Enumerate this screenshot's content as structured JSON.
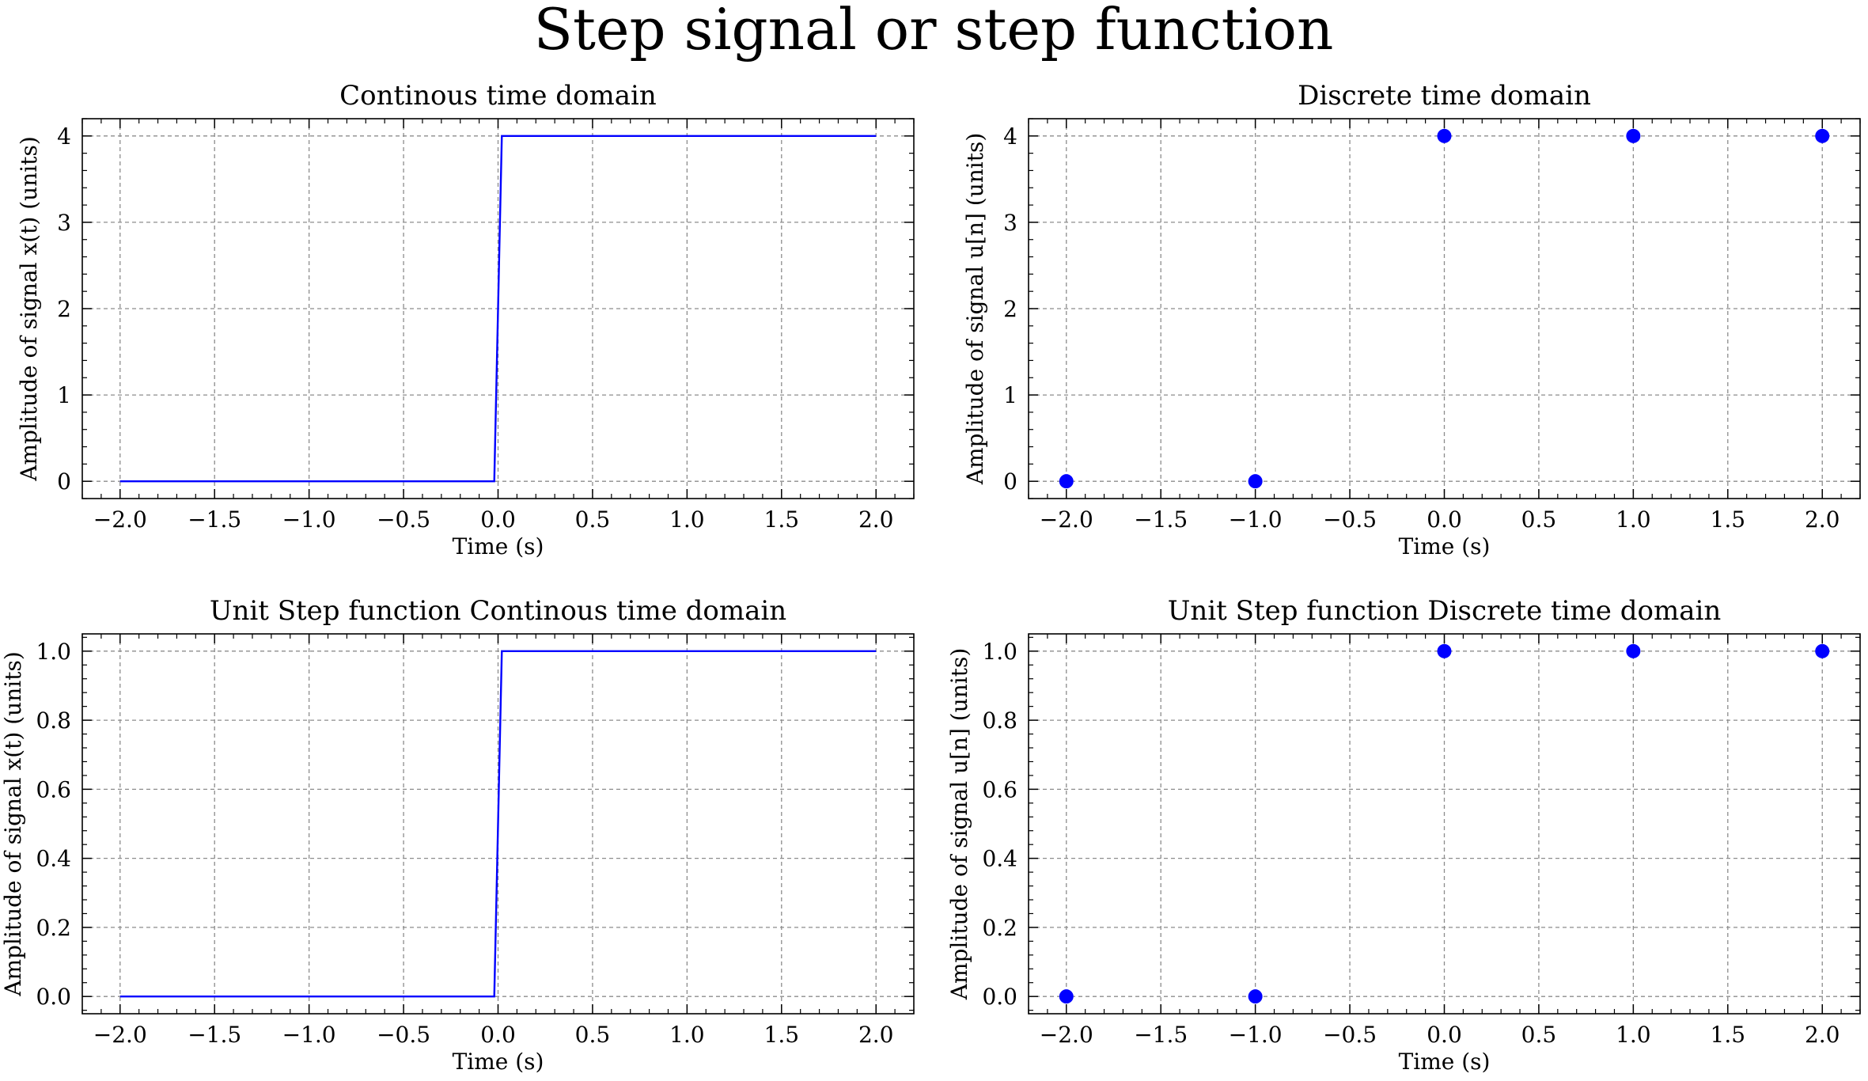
{
  "figure": {
    "title": "Step signal or step function"
  },
  "chart_data": [
    {
      "type": "line",
      "title": "Continous time domain",
      "xlabel": "Time (s)",
      "ylabel": "Amplitude of signal x(t) (units)",
      "xlim": [
        -2.2,
        2.2
      ],
      "ylim": [
        -0.2,
        4.2
      ],
      "xticks": [
        -2.0,
        -1.5,
        -1.0,
        -0.5,
        0.0,
        0.5,
        1.0,
        1.5,
        2.0
      ],
      "xtick_labels": [
        "−2.0",
        "−1.5",
        "−1.0",
        "−0.5",
        "0.0",
        "0.5",
        "1.0",
        "1.5",
        "2.0"
      ],
      "yticks": [
        0,
        1,
        2,
        3,
        4
      ],
      "ytick_labels": [
        "0",
        "1",
        "2",
        "3",
        "4"
      ],
      "grid": true,
      "series": [
        {
          "x": [
            -2.0,
            -0.02,
            0.02,
            2.0
          ],
          "y": [
            0,
            0,
            4,
            4
          ],
          "color": "#0000ff"
        }
      ]
    },
    {
      "type": "scatter",
      "title": "Discrete time domain",
      "xlabel": "Time (s)",
      "ylabel": "Amplitude of signal u[n] (units)",
      "xlim": [
        -2.2,
        2.2
      ],
      "ylim": [
        -0.2,
        4.2
      ],
      "xticks": [
        -2.0,
        -1.5,
        -1.0,
        -0.5,
        0.0,
        0.5,
        1.0,
        1.5,
        2.0
      ],
      "xtick_labels": [
        "−2.0",
        "−1.5",
        "−1.0",
        "−0.5",
        "0.0",
        "0.5",
        "1.0",
        "1.5",
        "2.0"
      ],
      "yticks": [
        0,
        1,
        2,
        3,
        4
      ],
      "ytick_labels": [
        "0",
        "1",
        "2",
        "3",
        "4"
      ],
      "grid": true,
      "series": [
        {
          "x": [
            -2,
            -1,
            0,
            1,
            2
          ],
          "y": [
            0,
            0,
            4,
            4,
            4
          ],
          "color": "#0000ff"
        }
      ]
    },
    {
      "type": "line",
      "title": "Unit Step function Continous time domain",
      "xlabel": "Time (s)",
      "ylabel": "Amplitude of signal x(t) (units)",
      "xlim": [
        -2.2,
        2.2
      ],
      "ylim": [
        -0.05,
        1.05
      ],
      "xticks": [
        -2.0,
        -1.5,
        -1.0,
        -0.5,
        0.0,
        0.5,
        1.0,
        1.5,
        2.0
      ],
      "xtick_labels": [
        "−2.0",
        "−1.5",
        "−1.0",
        "−0.5",
        "0.0",
        "0.5",
        "1.0",
        "1.5",
        "2.0"
      ],
      "yticks": [
        0.0,
        0.2,
        0.4,
        0.6,
        0.8,
        1.0
      ],
      "ytick_labels": [
        "0.0",
        "0.2",
        "0.4",
        "0.6",
        "0.8",
        "1.0"
      ],
      "grid": true,
      "series": [
        {
          "x": [
            -2.0,
            -0.02,
            0.02,
            2.0
          ],
          "y": [
            0,
            0,
            1,
            1
          ],
          "color": "#0000ff"
        }
      ]
    },
    {
      "type": "scatter",
      "title": "Unit Step function Discrete time domain",
      "xlabel": "Time (s)",
      "ylabel": "Amplitude of signal u[n] (units)",
      "xlim": [
        -2.2,
        2.2
      ],
      "ylim": [
        -0.05,
        1.05
      ],
      "xticks": [
        -2.0,
        -1.5,
        -1.0,
        -0.5,
        0.0,
        0.5,
        1.0,
        1.5,
        2.0
      ],
      "xtick_labels": [
        "−2.0",
        "−1.5",
        "−1.0",
        "−0.5",
        "0.0",
        "0.5",
        "1.0",
        "1.5",
        "2.0"
      ],
      "yticks": [
        0.0,
        0.2,
        0.4,
        0.6,
        0.8,
        1.0
      ],
      "ytick_labels": [
        "0.0",
        "0.2",
        "0.4",
        "0.6",
        "0.8",
        "1.0"
      ],
      "grid": true,
      "series": [
        {
          "x": [
            -2,
            -1,
            0,
            1,
            2
          ],
          "y": [
            0,
            0,
            1,
            1,
            1
          ],
          "color": "#0000ff"
        }
      ]
    }
  ]
}
